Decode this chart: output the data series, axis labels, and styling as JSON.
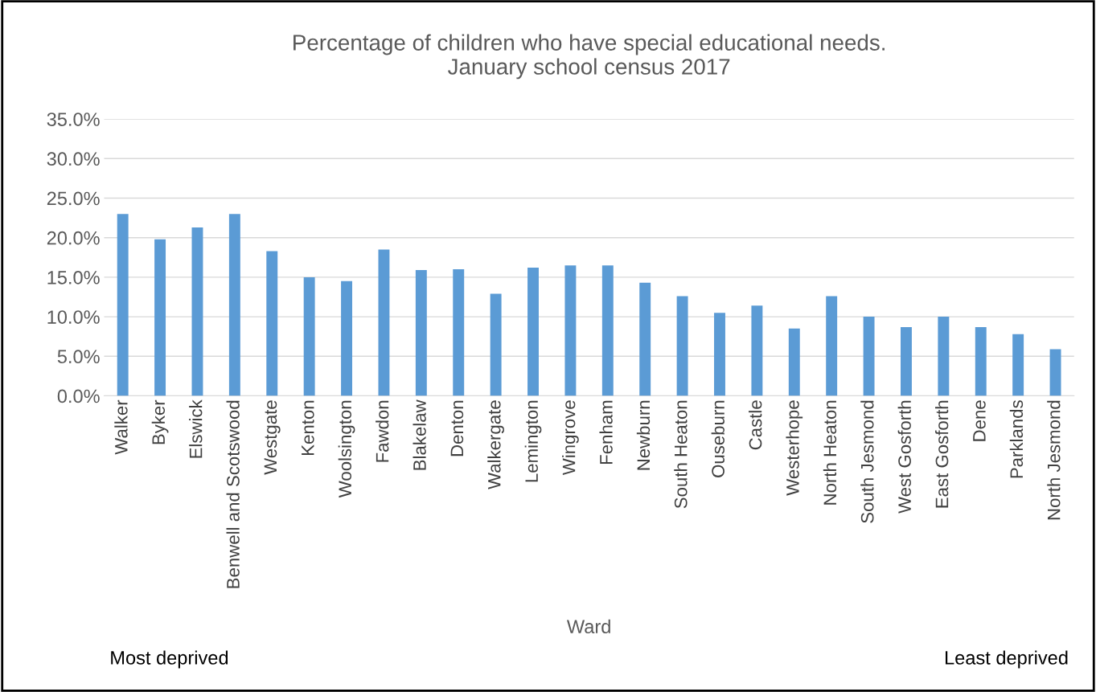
{
  "chart_data": {
    "type": "bar",
    "title": "Percentage of children who have special educational needs.\nJanuary school census 2017",
    "xlabel": "Ward",
    "categories": [
      "Walker",
      "Byker",
      "Elswick",
      "Benwell and Scotswood",
      "Westgate",
      "Kenton",
      "Woolsington",
      "Fawdon",
      "Blakelaw",
      "Denton",
      "Walkergate",
      "Lemington",
      "Wingrove",
      "Fenham",
      "Newburn",
      "South Heaton",
      "Ouseburn",
      "Castle",
      "Westerhope",
      "North Heaton",
      "South Jesmond",
      "West Gosforth",
      "East Gosforth",
      "Dene",
      "Parklands",
      "North Jesmond"
    ],
    "values": [
      23.0,
      19.8,
      21.3,
      23.0,
      18.3,
      15.0,
      14.5,
      18.5,
      15.9,
      16.0,
      12.9,
      16.2,
      16.5,
      16.5,
      14.3,
      12.6,
      10.5,
      11.4,
      8.5,
      12.6,
      10.0,
      8.7,
      10.0,
      8.7,
      7.8,
      5.9
    ],
    "color": "#5b9bd5",
    "ylim": [
      0,
      35
    ],
    "yticks": [
      {
        "value": 0,
        "label": "0.0%"
      },
      {
        "value": 5,
        "label": "5.0%"
      },
      {
        "value": 10,
        "label": "10.0%"
      },
      {
        "value": 15,
        "label": "15.0%"
      },
      {
        "value": 20,
        "label": "20.0%"
      },
      {
        "value": 25,
        "label": "25.0%"
      },
      {
        "value": 30,
        "label": "30.0%"
      },
      {
        "value": 35,
        "label": "35.0%"
      }
    ],
    "grid": "y",
    "legend": false,
    "annotations": [
      "Most deprived",
      "Least deprived"
    ]
  }
}
